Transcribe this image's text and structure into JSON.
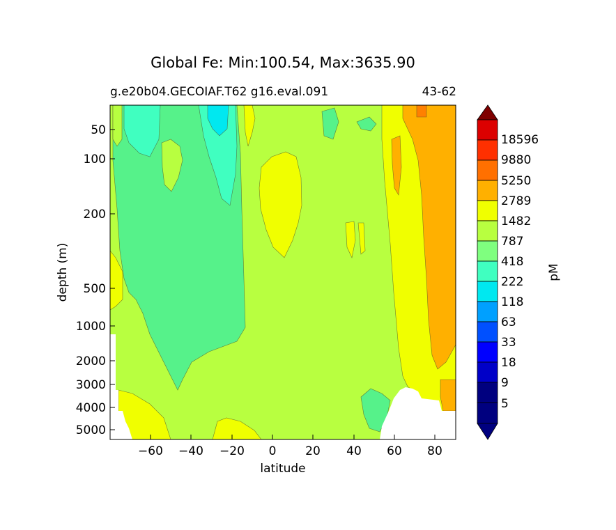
{
  "chart_data": {
    "type": "heatmap",
    "title": "Global Fe: Min:100.54, Max:3635.90",
    "subtitle_left": "g.e20b04.GECOIAF.T62 g16.eval.091",
    "subtitle_right": "43-62",
    "xlabel": "latitude",
    "ylabel": "depth (m)",
    "xlim": [
      -80,
      90
    ],
    "x_ticks": [
      -60,
      -40,
      -20,
      0,
      20,
      40,
      60,
      80
    ],
    "x_tick_labels": [
      "−60",
      "−40",
      "−20",
      "0",
      "20",
      "40",
      "60",
      "80"
    ],
    "y_ticks": [
      50,
      100,
      200,
      500,
      1000,
      2000,
      3000,
      4000,
      5000
    ],
    "y_tick_labels": [
      "50",
      "100",
      "200",
      "500",
      "1000",
      "2000",
      "3000",
      "4000",
      "5000"
    ],
    "colorbar": {
      "label": "pM",
      "levels": [
        "5",
        "9",
        "18",
        "33",
        "63",
        "118",
        "222",
        "418",
        "787",
        "1482",
        "2789",
        "5250",
        "9880",
        "18596"
      ],
      "colors": [
        "#00007f",
        "#0000c8",
        "#0000ff",
        "#0050ff",
        "#00a0ff",
        "#00e8f0",
        "#40ffc0",
        "#7fff7f",
        "#b8ff40",
        "#f0ff00",
        "#ffb000",
        "#ff7000",
        "#ff3000",
        "#dc0000",
        "#7f0000"
      ]
    },
    "fill_colors": {
      "band_222_418": "#56f28a",
      "band_418_787": "#b8ff40",
      "band_787_1482": "#f0ff00",
      "band_1482_2789": "#ffb000",
      "band_2789_5250": "#ff8000",
      "band_118_222": "#40ffc0",
      "band_63_118": "#00e8f0",
      "no_data": "#ffffff"
    }
  }
}
